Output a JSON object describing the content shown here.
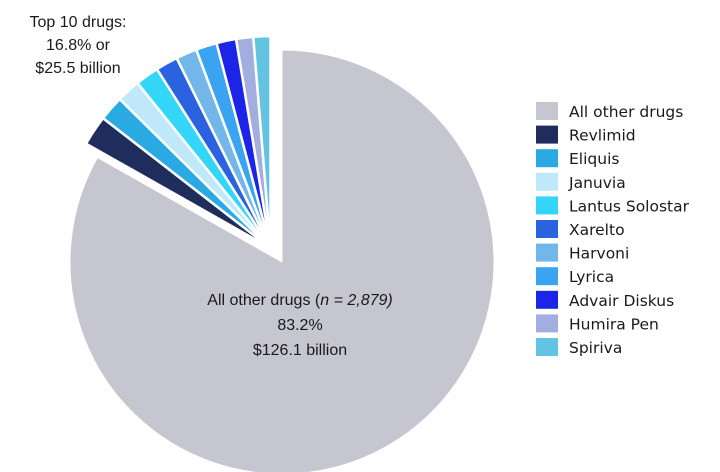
{
  "chart_data": {
    "type": "pie",
    "title": "",
    "annotations": {
      "top10": [
        "Top 10 drugs:",
        "16.8% or",
        "$25.5 billion"
      ],
      "other": {
        "line1_prefix": "All other drugs (",
        "line1_italic": "n = 2,879)",
        "line2": "83.2%",
        "line3": "$126.1 billion"
      }
    },
    "slices": [
      {
        "label": "All other drugs",
        "value": 83.2,
        "color": "#c5c6d0",
        "exploded": false
      },
      {
        "label": "Revlimid",
        "value": 2.3,
        "color": "#1f2d5c",
        "exploded": true
      },
      {
        "label": "Eliquis",
        "value": 1.9,
        "color": "#29aae2",
        "exploded": true
      },
      {
        "label": "Januvia",
        "value": 1.8,
        "color": "#bfe9fb",
        "exploded": true
      },
      {
        "label": "Lantus Solostar",
        "value": 1.8,
        "color": "#33d6f7",
        "exploded": true
      },
      {
        "label": "Xarelto",
        "value": 1.7,
        "color": "#2a62e0",
        "exploded": true
      },
      {
        "label": "Harvoni",
        "value": 1.6,
        "color": "#72b6ea",
        "exploded": true
      },
      {
        "label": "Lyrica",
        "value": 1.6,
        "color": "#3aa4f2",
        "exploded": true
      },
      {
        "label": "Advair Diskus",
        "value": 1.5,
        "color": "#1c24e8",
        "exploded": true
      },
      {
        "label": "Humira Pen",
        "value": 1.3,
        "color": "#a3aee0",
        "exploded": true
      },
      {
        "label": "Spiriva",
        "value": 1.3,
        "color": "#62c4e0",
        "exploded": true
      }
    ],
    "legend": {
      "position": "right",
      "items": [
        "All other drugs",
        "Revlimid",
        "Eliquis",
        "Januvia",
        "Lantus Solostar",
        "Xarelto",
        "Harvoni",
        "Lyrica",
        "Advair Diskus",
        "Humira Pen",
        "Spiriva"
      ]
    }
  }
}
